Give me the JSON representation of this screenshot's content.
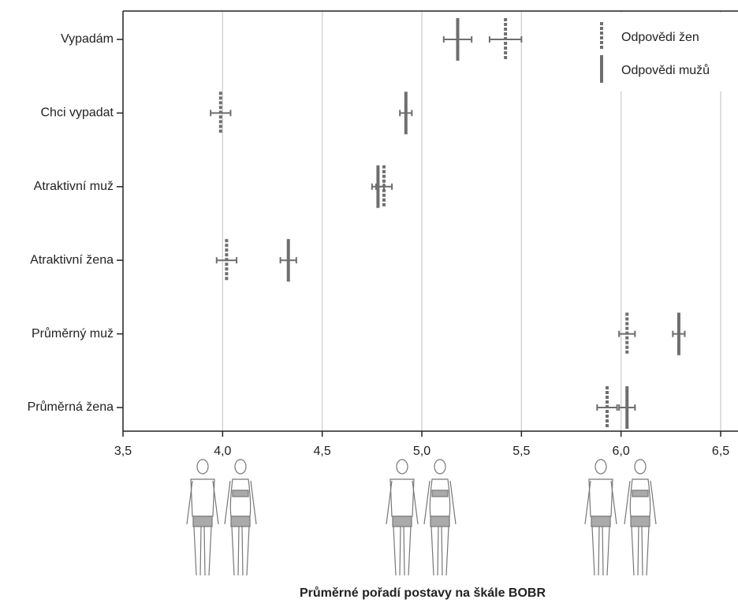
{
  "chart_data": {
    "type": "errorbar-dot",
    "x_label": "Průměrné pořadí postavy na škále BOBR",
    "categories": [
      "Vypadám",
      "Chci vypadat",
      "Atraktivní muž",
      "Atraktivní žena",
      "Průměrný muž",
      "Průměrná žena"
    ],
    "series": [
      {
        "name": "Odpovědi žen",
        "color": "#6e6e6e",
        "style": "dashed",
        "values": [
          5.42,
          3.99,
          4.81,
          4.02,
          6.03,
          5.93
        ],
        "errors": [
          0.08,
          0.05,
          0.04,
          0.05,
          0.04,
          0.05
        ]
      },
      {
        "name": "Odpovědi mužů",
        "color": "#6e6e6e",
        "style": "solid",
        "values": [
          5.18,
          4.92,
          4.78,
          4.33,
          6.29,
          6.03
        ],
        "errors": [
          0.07,
          0.03,
          0.03,
          0.04,
          0.03,
          0.04
        ]
      }
    ],
    "xlim": [
      3.5,
      6.58
    ],
    "xticks": [
      {
        "value": 3.5,
        "label": "3,5"
      },
      {
        "value": 4.0,
        "label": "4,0"
      },
      {
        "value": 4.5,
        "label": "4,5"
      },
      {
        "value": 5.0,
        "label": "5,0"
      },
      {
        "value": 5.5,
        "label": "5,5"
      },
      {
        "value": 6.0,
        "label": "6,0"
      },
      {
        "value": 6.5,
        "label": "6,5"
      }
    ],
    "grid": true,
    "legend": "top-right"
  }
}
